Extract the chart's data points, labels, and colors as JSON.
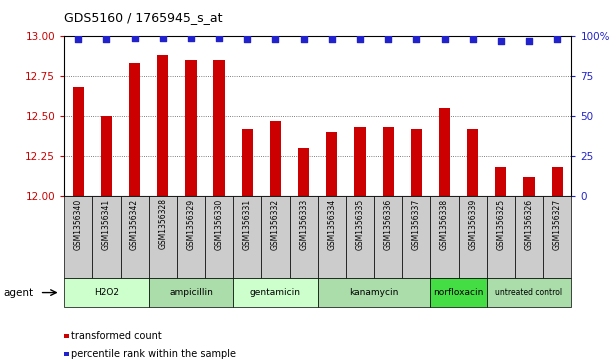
{
  "title": "GDS5160 / 1765945_s_at",
  "samples": [
    "GSM1356340",
    "GSM1356341",
    "GSM1356342",
    "GSM1356328",
    "GSM1356329",
    "GSM1356330",
    "GSM1356331",
    "GSM1356332",
    "GSM1356333",
    "GSM1356334",
    "GSM1356335",
    "GSM1356336",
    "GSM1356337",
    "GSM1356338",
    "GSM1356339",
    "GSM1356325",
    "GSM1356326",
    "GSM1356327"
  ],
  "transformed_counts": [
    12.68,
    12.5,
    12.83,
    12.88,
    12.85,
    12.85,
    12.42,
    12.47,
    12.3,
    12.4,
    12.43,
    12.43,
    12.42,
    12.55,
    12.42,
    12.18,
    12.12,
    12.18
  ],
  "percentile_ranks": [
    98,
    98,
    99,
    99,
    99,
    99,
    98,
    98,
    98,
    98,
    98,
    98,
    98,
    98,
    98,
    97,
    97,
    98
  ],
  "agents": [
    {
      "label": "H2O2",
      "start": 0,
      "end": 3,
      "color": "#ccffcc"
    },
    {
      "label": "ampicillin",
      "start": 3,
      "end": 6,
      "color": "#aaddaa"
    },
    {
      "label": "gentamicin",
      "start": 6,
      "end": 9,
      "color": "#ccffcc"
    },
    {
      "label": "kanamycin",
      "start": 9,
      "end": 13,
      "color": "#aaddaa"
    },
    {
      "label": "norfloxacin",
      "start": 13,
      "end": 15,
      "color": "#44dd44"
    },
    {
      "label": "untreated control",
      "start": 15,
      "end": 18,
      "color": "#aaddaa"
    }
  ],
  "bar_color": "#cc0000",
  "dot_color": "#2222cc",
  "ylim_left": [
    12.0,
    13.0
  ],
  "ylim_right": [
    0,
    100
  ],
  "yticks_left": [
    12.0,
    12.25,
    12.5,
    12.75,
    13.0
  ],
  "yticks_right": [
    0,
    25,
    50,
    75,
    100
  ],
  "ylabel_left_color": "#cc0000",
  "ylabel_right_color": "#2222cc",
  "agent_label": "agent",
  "legend_bar_label": "transformed count",
  "legend_dot_label": "percentile rank within the sample",
  "bg_color": "#ffffff",
  "grid_color": "#555555",
  "tick_area_color": "#cccccc",
  "title_fontsize": 9,
  "bar_width": 0.4
}
